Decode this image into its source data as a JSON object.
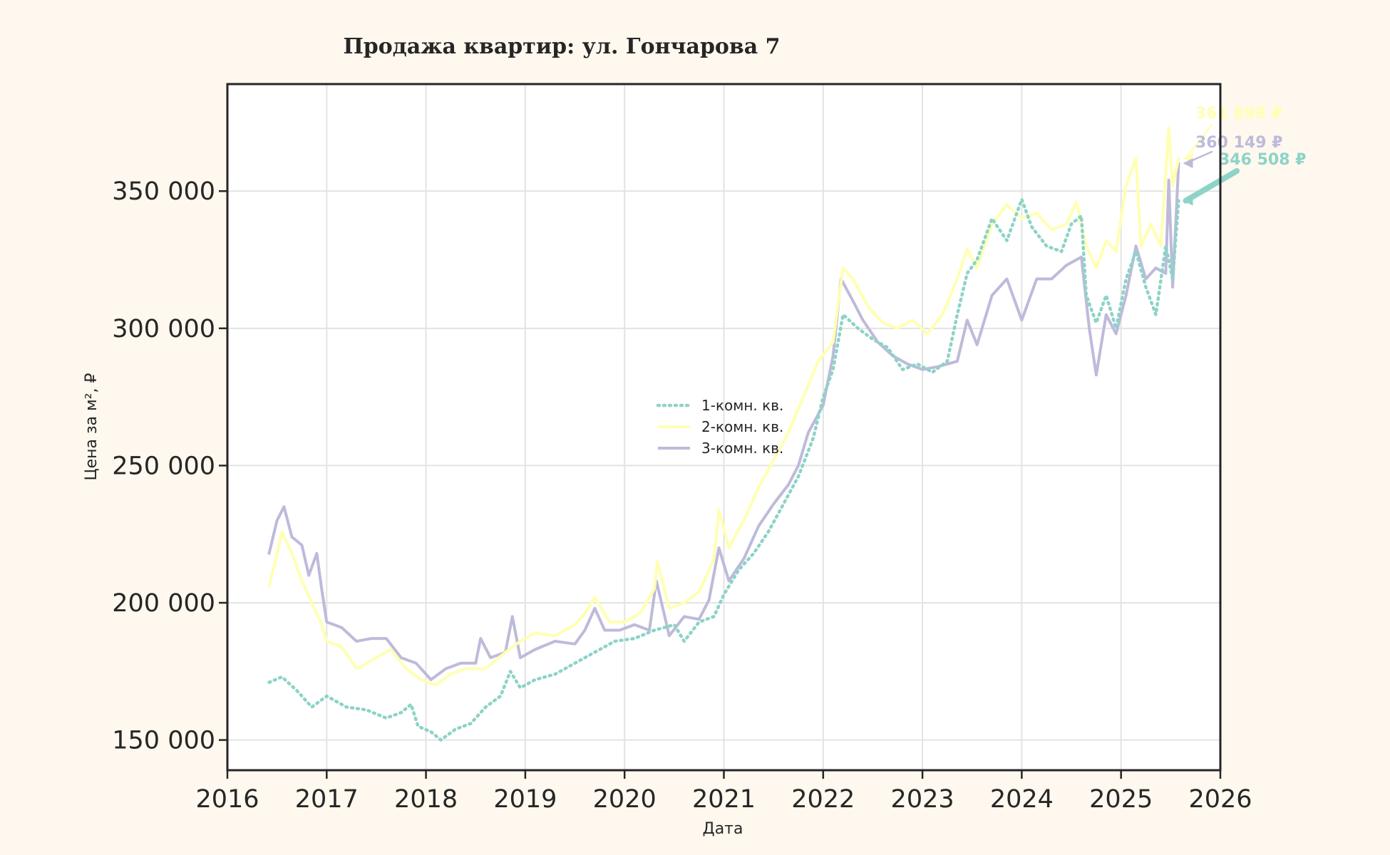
{
  "chart_data": {
    "type": "line",
    "title": "Продажа квартир: ул. Гончарова 7",
    "xlabel": "Дата",
    "ylabel": "Цена за м², ₽",
    "xlim": [
      2016.0,
      2026.0
    ],
    "ylim": [
      139000,
      389000
    ],
    "x_ticks": [
      "2016",
      "2017",
      "2018",
      "2019",
      "2020",
      "2021",
      "2022",
      "2023",
      "2024",
      "2025",
      "2026"
    ],
    "y_ticks": [
      150000,
      200000,
      250000,
      300000,
      350000
    ],
    "y_tick_labels": [
      "150 000",
      "200 000",
      "250 000",
      "300 000",
      "350 000"
    ],
    "grid": true,
    "legend_position": "center",
    "series": [
      {
        "name": "1-комн. кв.",
        "color": "#8dd3c7",
        "style": "dotted",
        "end_label": "346 508 ₽",
        "points": [
          [
            2016.42,
            171000
          ],
          [
            2016.55,
            173000
          ],
          [
            2016.7,
            168000
          ],
          [
            2016.85,
            162000
          ],
          [
            2017.0,
            166000
          ],
          [
            2017.2,
            162000
          ],
          [
            2017.4,
            161000
          ],
          [
            2017.6,
            158000
          ],
          [
            2017.75,
            160000
          ],
          [
            2017.85,
            163000
          ],
          [
            2017.92,
            155000
          ],
          [
            2018.05,
            153000
          ],
          [
            2018.15,
            150000
          ],
          [
            2018.3,
            154000
          ],
          [
            2018.45,
            156000
          ],
          [
            2018.6,
            162000
          ],
          [
            2018.75,
            166000
          ],
          [
            2018.85,
            175000
          ],
          [
            2018.95,
            169000
          ],
          [
            2019.1,
            172000
          ],
          [
            2019.3,
            174000
          ],
          [
            2019.5,
            178000
          ],
          [
            2019.7,
            182000
          ],
          [
            2019.9,
            186000
          ],
          [
            2020.1,
            187000
          ],
          [
            2020.3,
            190000
          ],
          [
            2020.5,
            192000
          ],
          [
            2020.6,
            186000
          ],
          [
            2020.75,
            193000
          ],
          [
            2020.9,
            195000
          ],
          [
            2021.0,
            203000
          ],
          [
            2021.15,
            212000
          ],
          [
            2021.3,
            218000
          ],
          [
            2021.45,
            226000
          ],
          [
            2021.6,
            236000
          ],
          [
            2021.75,
            246000
          ],
          [
            2021.9,
            260000
          ],
          [
            2022.0,
            275000
          ],
          [
            2022.1,
            285000
          ],
          [
            2022.2,
            305000
          ],
          [
            2022.35,
            300000
          ],
          [
            2022.5,
            296000
          ],
          [
            2022.65,
            293000
          ],
          [
            2022.8,
            285000
          ],
          [
            2022.95,
            287000
          ],
          [
            2023.1,
            284000
          ],
          [
            2023.25,
            288000
          ],
          [
            2023.35,
            305000
          ],
          [
            2023.45,
            320000
          ],
          [
            2023.55,
            325000
          ],
          [
            2023.7,
            340000
          ],
          [
            2023.85,
            332000
          ],
          [
            2024.0,
            347000
          ],
          [
            2024.1,
            337000
          ],
          [
            2024.25,
            330000
          ],
          [
            2024.4,
            328000
          ],
          [
            2024.5,
            338000
          ],
          [
            2024.6,
            341000
          ],
          [
            2024.65,
            312000
          ],
          [
            2024.75,
            302000
          ],
          [
            2024.85,
            312000
          ],
          [
            2024.95,
            300000
          ],
          [
            2025.05,
            318000
          ],
          [
            2025.15,
            328000
          ],
          [
            2025.25,
            315000
          ],
          [
            2025.35,
            305000
          ],
          [
            2025.45,
            330000
          ],
          [
            2025.52,
            318000
          ],
          [
            2025.58,
            346508
          ]
        ]
      },
      {
        "name": "2-комн. кв.",
        "color": "#ffffb3",
        "style": "solid",
        "end_label": "361 898 ₽",
        "points": [
          [
            2016.42,
            206000
          ],
          [
            2016.5,
            218000
          ],
          [
            2016.55,
            226000
          ],
          [
            2016.65,
            218000
          ],
          [
            2016.75,
            208000
          ],
          [
            2016.85,
            200000
          ],
          [
            2016.95,
            192000
          ],
          [
            2017.0,
            186000
          ],
          [
            2017.15,
            184000
          ],
          [
            2017.3,
            176000
          ],
          [
            2017.5,
            180000
          ],
          [
            2017.65,
            183000
          ],
          [
            2017.8,
            176000
          ],
          [
            2017.95,
            172000
          ],
          [
            2018.1,
            170000
          ],
          [
            2018.25,
            174000
          ],
          [
            2018.4,
            176000
          ],
          [
            2018.6,
            176000
          ],
          [
            2018.8,
            182000
          ],
          [
            2018.95,
            186000
          ],
          [
            2019.1,
            189000
          ],
          [
            2019.3,
            188000
          ],
          [
            2019.5,
            192000
          ],
          [
            2019.6,
            196000
          ],
          [
            2019.7,
            202000
          ],
          [
            2019.85,
            193000
          ],
          [
            2020.0,
            193000
          ],
          [
            2020.15,
            196000
          ],
          [
            2020.3,
            205000
          ],
          [
            2020.33,
            215000
          ],
          [
            2020.45,
            198000
          ],
          [
            2020.6,
            200000
          ],
          [
            2020.75,
            204000
          ],
          [
            2020.9,
            216000
          ],
          [
            2020.95,
            234000
          ],
          [
            2021.05,
            220000
          ],
          [
            2021.2,
            230000
          ],
          [
            2021.35,
            242000
          ],
          [
            2021.5,
            252000
          ],
          [
            2021.65,
            262000
          ],
          [
            2021.8,
            275000
          ],
          [
            2021.95,
            288000
          ],
          [
            2022.1,
            295000
          ],
          [
            2022.2,
            322000
          ],
          [
            2022.3,
            318000
          ],
          [
            2022.45,
            308000
          ],
          [
            2022.6,
            302000
          ],
          [
            2022.75,
            300000
          ],
          [
            2022.9,
            303000
          ],
          [
            2023.05,
            298000
          ],
          [
            2023.2,
            305000
          ],
          [
            2023.35,
            318000
          ],
          [
            2023.45,
            329000
          ],
          [
            2023.55,
            322000
          ],
          [
            2023.7,
            338000
          ],
          [
            2023.85,
            345000
          ],
          [
            2024.0,
            340000
          ],
          [
            2024.15,
            342000
          ],
          [
            2024.3,
            336000
          ],
          [
            2024.45,
            338000
          ],
          [
            2024.55,
            346000
          ],
          [
            2024.65,
            330000
          ],
          [
            2024.75,
            322000
          ],
          [
            2024.85,
            332000
          ],
          [
            2024.95,
            328000
          ],
          [
            2025.05,
            352000
          ],
          [
            2025.15,
            362000
          ],
          [
            2025.2,
            330000
          ],
          [
            2025.3,
            338000
          ],
          [
            2025.4,
            330000
          ],
          [
            2025.48,
            373000
          ],
          [
            2025.52,
            352000
          ],
          [
            2025.58,
            361898
          ]
        ]
      },
      {
        "name": "3-комн. кв.",
        "color": "#bebada",
        "style": "solid",
        "end_label": "360 149 ₽",
        "points": [
          [
            2016.42,
            218000
          ],
          [
            2016.5,
            230000
          ],
          [
            2016.57,
            235000
          ],
          [
            2016.65,
            224000
          ],
          [
            2016.75,
            221000
          ],
          [
            2016.82,
            210000
          ],
          [
            2016.9,
            218000
          ],
          [
            2016.95,
            205000
          ],
          [
            2017.0,
            193000
          ],
          [
            2017.15,
            191000
          ],
          [
            2017.3,
            186000
          ],
          [
            2017.45,
            187000
          ],
          [
            2017.6,
            187000
          ],
          [
            2017.75,
            180000
          ],
          [
            2017.9,
            178000
          ],
          [
            2018.05,
            172000
          ],
          [
            2018.2,
            176000
          ],
          [
            2018.35,
            178000
          ],
          [
            2018.5,
            178000
          ],
          [
            2018.55,
            187000
          ],
          [
            2018.65,
            180000
          ],
          [
            2018.8,
            182000
          ],
          [
            2018.87,
            195000
          ],
          [
            2018.95,
            180000
          ],
          [
            2019.1,
            183000
          ],
          [
            2019.3,
            186000
          ],
          [
            2019.5,
            185000
          ],
          [
            2019.6,
            190000
          ],
          [
            2019.7,
            198000
          ],
          [
            2019.8,
            190000
          ],
          [
            2019.95,
            190000
          ],
          [
            2020.1,
            192000
          ],
          [
            2020.25,
            190000
          ],
          [
            2020.32,
            208000
          ],
          [
            2020.45,
            188000
          ],
          [
            2020.6,
            195000
          ],
          [
            2020.75,
            194000
          ],
          [
            2020.85,
            201000
          ],
          [
            2020.95,
            220000
          ],
          [
            2021.05,
            208000
          ],
          [
            2021.2,
            216000
          ],
          [
            2021.35,
            228000
          ],
          [
            2021.5,
            236000
          ],
          [
            2021.65,
            243000
          ],
          [
            2021.75,
            250000
          ],
          [
            2021.85,
            262000
          ],
          [
            2022.0,
            272000
          ],
          [
            2022.1,
            290000
          ],
          [
            2022.18,
            318000
          ],
          [
            2022.3,
            310000
          ],
          [
            2022.4,
            303000
          ],
          [
            2022.55,
            295000
          ],
          [
            2022.7,
            290000
          ],
          [
            2022.85,
            287000
          ],
          [
            2023.0,
            285000
          ],
          [
            2023.15,
            286000
          ],
          [
            2023.35,
            288000
          ],
          [
            2023.45,
            303000
          ],
          [
            2023.55,
            294000
          ],
          [
            2023.7,
            312000
          ],
          [
            2023.85,
            318000
          ],
          [
            2024.0,
            303000
          ],
          [
            2024.15,
            318000
          ],
          [
            2024.3,
            318000
          ],
          [
            2024.45,
            323000
          ],
          [
            2024.6,
            326000
          ],
          [
            2024.68,
            300000
          ],
          [
            2024.75,
            283000
          ],
          [
            2024.85,
            305000
          ],
          [
            2024.95,
            298000
          ],
          [
            2025.05,
            312000
          ],
          [
            2025.15,
            330000
          ],
          [
            2025.25,
            318000
          ],
          [
            2025.35,
            322000
          ],
          [
            2025.45,
            320000
          ],
          [
            2025.48,
            354000
          ],
          [
            2025.52,
            315000
          ],
          [
            2025.58,
            360149
          ]
        ]
      }
    ]
  }
}
